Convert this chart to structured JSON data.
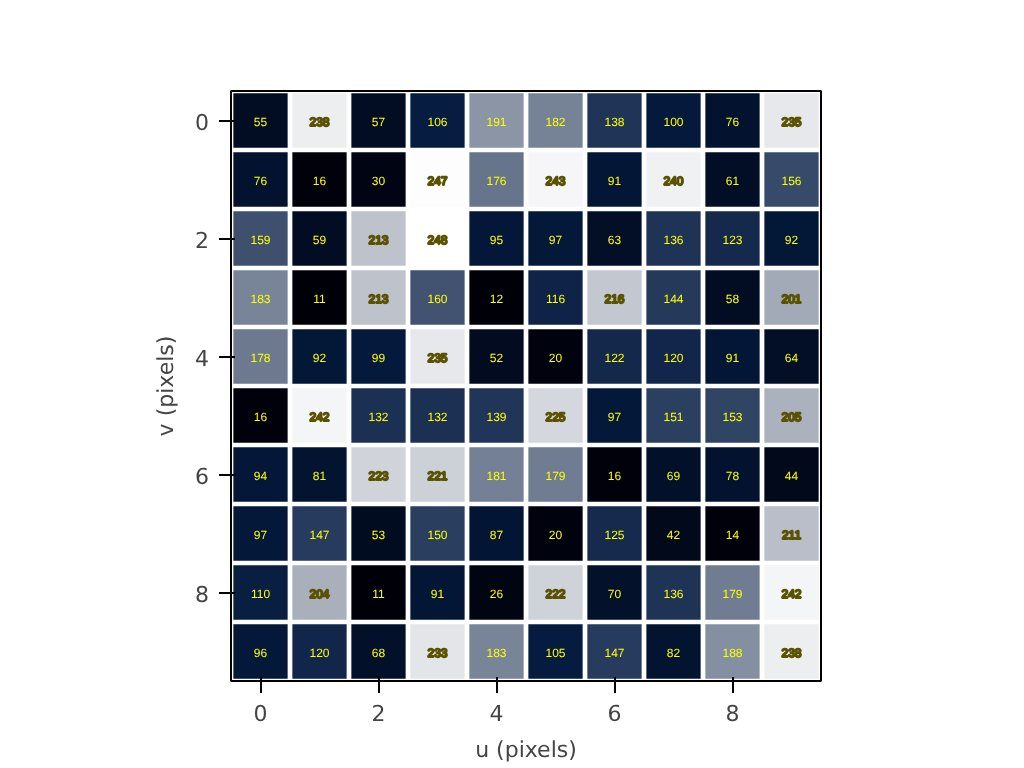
{
  "chart_data": {
    "type": "heatmap",
    "xlabel": "u (pixels)",
    "ylabel": "v (pixels)",
    "categories": [
      "0",
      null,
      "2",
      null,
      "4",
      null,
      "6",
      null,
      "8",
      null
    ],
    "y_categories": [
      "0",
      null,
      "2",
      null,
      "4",
      null,
      "6",
      null,
      "8",
      null
    ],
    "cells": [
      [
        55,
        238,
        57,
        106,
        191,
        182,
        138,
        100,
        76,
        235
      ],
      [
        76,
        16,
        30,
        247,
        176,
        243,
        91,
        240,
        61,
        156
      ],
      [
        159,
        59,
        213,
        248,
        95,
        97,
        63,
        136,
        123,
        92
      ],
      [
        183,
        11,
        213,
        160,
        12,
        116,
        216,
        144,
        58,
        201
      ],
      [
        178,
        92,
        99,
        235,
        52,
        20,
        122,
        120,
        91,
        64
      ],
      [
        16,
        242,
        132,
        132,
        139,
        225,
        97,
        151,
        153,
        205
      ],
      [
        94,
        81,
        223,
        221,
        181,
        179,
        16,
        69,
        78,
        44
      ],
      [
        97,
        147,
        53,
        150,
        87,
        20,
        125,
        42,
        14,
        211
      ],
      [
        110,
        204,
        11,
        91,
        26,
        222,
        70,
        136,
        179,
        242
      ],
      [
        96,
        120,
        68,
        233,
        183,
        105,
        147,
        82,
        188,
        238
      ]
    ],
    "data_labels": true,
    "grid": false
  }
}
